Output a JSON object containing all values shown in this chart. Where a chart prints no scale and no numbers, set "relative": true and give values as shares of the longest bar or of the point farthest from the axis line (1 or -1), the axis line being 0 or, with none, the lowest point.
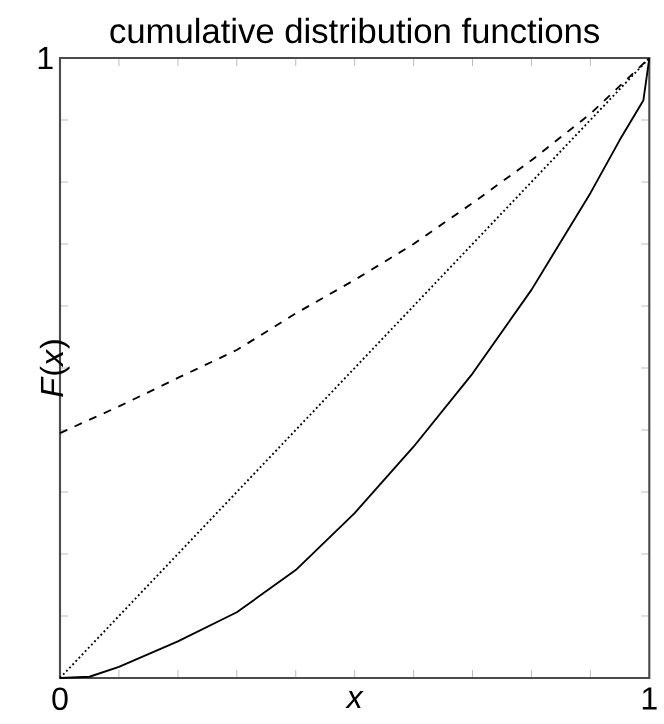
{
  "chart_data": {
    "type": "line",
    "title": "cumulative distribution functions",
    "xlabel": "x",
    "ylabel": "*F*(*x*)",
    "xlim": [
      0,
      1
    ],
    "relative": true,
    "annotations": [
      "1"
    ],
    "xticks": [
      0,
      {
        "value": 0.1,
        "label": null
      },
      {
        "value": 0.2,
        "label": null
      },
      {
        "value": 0.3,
        "label": null
      },
      {
        "value": 0.4,
        "label": null
      },
      {
        "value": 0.5,
        "label": null
      },
      {
        "value": 0.6,
        "label": null
      },
      {
        "value": 0.7,
        "label": null
      },
      {
        "value": 0.8,
        "label": null
      },
      {
        "value": 0.9,
        "label": null
      },
      1
    ],
    "grid": false,
    "series": [
      {
        "color": "#000000",
        "line_style": "dashed",
        "x": [
          0,
          0.1,
          0.2,
          0.3,
          0.4,
          0.5,
          0.6,
          0.7,
          0.8,
          0.9,
          1
        ],
        "values": [
          0.395,
          0.438,
          0.484,
          0.529,
          0.588,
          0.642,
          0.7,
          0.766,
          0.835,
          0.91,
          1
        ]
      },
      {
        "color": "#000000",
        "line_style": "dotted",
        "x": [
          0,
          0.5,
          1
        ],
        "values": [
          0,
          0.5,
          1
        ]
      },
      {
        "color": "#000000",
        "line_style": "solid",
        "x": [
          0,
          0.05,
          0.1,
          0.2,
          0.3,
          0.4,
          0.5,
          0.6,
          0.7,
          0.8,
          0.9,
          0.95,
          0.99,
          1
        ],
        "values": [
          0,
          0.002,
          0.018,
          0.059,
          0.106,
          0.174,
          0.266,
          0.373,
          0.491,
          0.626,
          0.782,
          0.868,
          0.932,
          1
        ]
      }
    ]
  }
}
